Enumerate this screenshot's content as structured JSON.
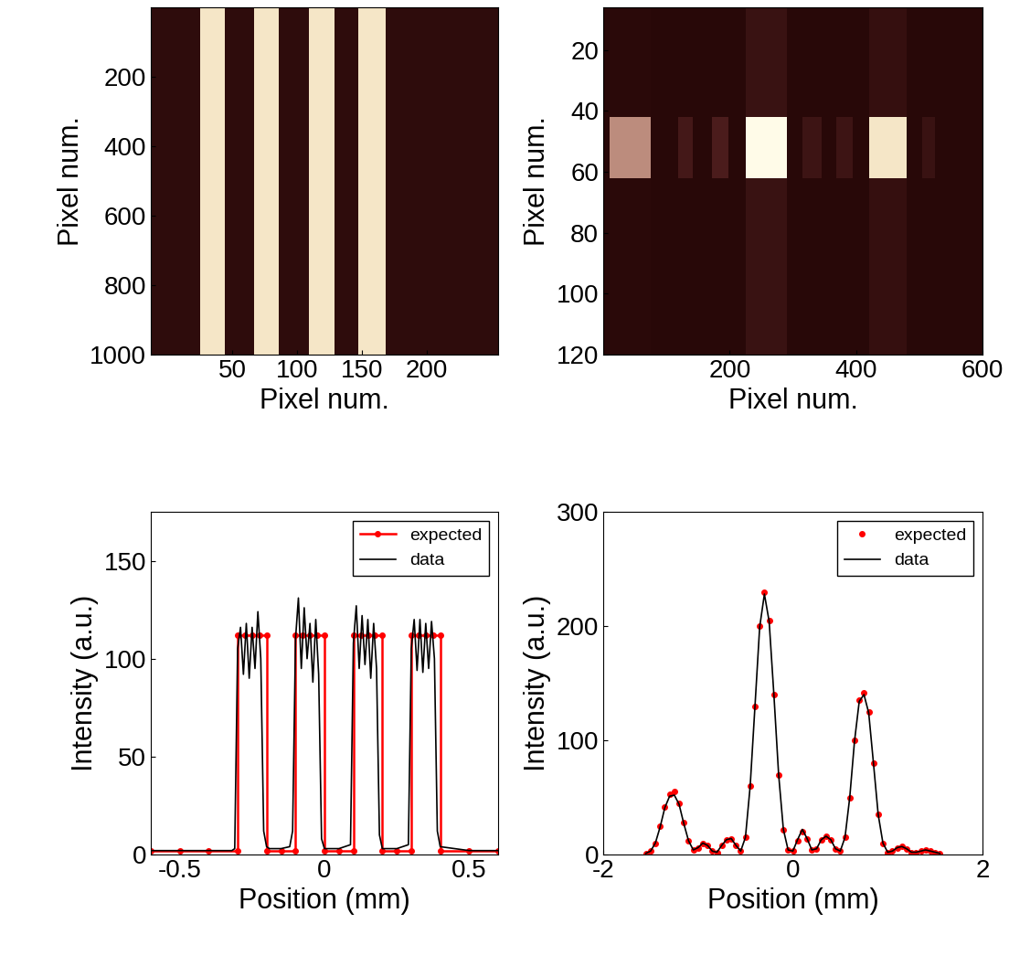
{
  "chart_data": [
    {
      "type": "heatmap",
      "x_label": "Pixel num.",
      "y_label": "Pixel num.",
      "x_edges": [
        -13,
        25,
        44.4,
        66.5,
        85.8,
        109.3,
        128.7,
        147.3,
        168,
        255
      ],
      "y_edges": [
        0,
        1000
      ],
      "cells": [
        [
          0.05,
          0.85,
          0.05,
          0.85,
          0.05,
          0.85,
          0.05,
          0.85,
          0.05
        ]
      ],
      "zlim": [
        0,
        1
      ],
      "xlim": [
        -13,
        255
      ],
      "ylim": [
        1000,
        0
      ],
      "xticks": [
        50,
        100,
        150,
        200
      ],
      "yticks": [
        200,
        400,
        600,
        800,
        1000
      ]
    },
    {
      "type": "heatmap",
      "x_label": "Pixel num.",
      "y_label": "Pixel num.",
      "x_edges": [
        0,
        10,
        75,
        118,
        142,
        172,
        198,
        225,
        290,
        315,
        345,
        368,
        395,
        420,
        480,
        505,
        525,
        600
      ],
      "y_edges": [
        6,
        42,
        62,
        120
      ],
      "cells": [
        [
          0.02,
          0.03,
          0.02,
          0.02,
          0.02,
          0.02,
          0.02,
          0.1,
          0.02,
          0.02,
          0.02,
          0.02,
          0.02,
          0.08,
          0.02,
          0.02,
          0.02
        ],
        [
          0.02,
          0.55,
          0.02,
          0.15,
          0.02,
          0.18,
          0.02,
          1.0,
          0.02,
          0.12,
          0.02,
          0.12,
          0.02,
          0.85,
          0.02,
          0.1,
          0.02
        ],
        [
          0.02,
          0.03,
          0.02,
          0.02,
          0.02,
          0.02,
          0.02,
          0.1,
          0.02,
          0.02,
          0.02,
          0.02,
          0.02,
          0.08,
          0.02,
          0.02,
          0.02
        ]
      ],
      "zlim": [
        0,
        1
      ],
      "xlim": [
        0,
        600
      ],
      "ylim": [
        120,
        6
      ],
      "xticks": [
        200,
        400,
        600
      ],
      "yticks": [
        20,
        40,
        60,
        80,
        100,
        120
      ]
    },
    {
      "type": "line",
      "x_label": "Position (mm)",
      "y_label": "Intensity (a.u.)",
      "xlim": [
        -0.6,
        0.6
      ],
      "ylim": [
        0,
        175
      ],
      "xticks": [
        -0.5,
        0,
        0.5
      ],
      "yticks": [
        0,
        50,
        100,
        150
      ],
      "legend": "upper right",
      "series": [
        {
          "name": "expected",
          "color": "#ff0000",
          "marker": "circle",
          "line_style": "solid",
          "x": [
            -0.6,
            -0.5,
            -0.4,
            -0.3,
            -0.3,
            -0.275,
            -0.25,
            -0.225,
            -0.2,
            -0.2,
            -0.15,
            -0.1,
            -0.1,
            -0.075,
            -0.05,
            -0.025,
            0,
            0,
            0.05,
            0.1,
            0.1,
            0.125,
            0.15,
            0.175,
            0.2,
            0.2,
            0.25,
            0.3,
            0.3,
            0.325,
            0.35,
            0.375,
            0.4,
            0.4,
            0.5,
            0.6
          ],
          "values": [
            2,
            2,
            2,
            2,
            112,
            112,
            112,
            112,
            112,
            2,
            2,
            2,
            112,
            112,
            112,
            112,
            112,
            2,
            2,
            2,
            112,
            112,
            112,
            112,
            112,
            2,
            2,
            2,
            112,
            112,
            112,
            112,
            112,
            2,
            2,
            2
          ]
        },
        {
          "name": "data",
          "color": "#000000",
          "line_style": "solid",
          "x": [
            -0.6,
            -0.5,
            -0.4,
            -0.32,
            -0.31,
            -0.3,
            -0.29,
            -0.28,
            -0.27,
            -0.26,
            -0.25,
            -0.24,
            -0.23,
            -0.22,
            -0.21,
            -0.2,
            -0.19,
            -0.15,
            -0.12,
            -0.11,
            -0.1,
            -0.09,
            -0.08,
            -0.07,
            -0.06,
            -0.05,
            -0.04,
            -0.03,
            -0.02,
            -0.01,
            0,
            0.05,
            0.09,
            0.1,
            0.11,
            0.12,
            0.13,
            0.14,
            0.15,
            0.16,
            0.17,
            0.18,
            0.19,
            0.2,
            0.25,
            0.29,
            0.3,
            0.31,
            0.32,
            0.33,
            0.34,
            0.35,
            0.36,
            0.37,
            0.38,
            0.39,
            0.4,
            0.5,
            0.6
          ],
          "values": [
            2,
            2,
            2,
            2,
            3,
            105,
            116,
            92,
            118,
            90,
            116,
            95,
            124,
            100,
            12,
            4,
            3,
            3,
            4,
            12,
            110,
            131,
            95,
            126,
            100,
            118,
            88,
            120,
            92,
            8,
            3,
            3,
            5,
            108,
            127,
            95,
            122,
            97,
            120,
            90,
            118,
            95,
            10,
            3,
            3,
            5,
            105,
            120,
            94,
            120,
            93,
            118,
            95,
            119,
            100,
            12,
            4,
            2,
            2
          ]
        }
      ]
    },
    {
      "type": "line",
      "x_label": "Position (mm)",
      "y_label": "Intensity (a.u.)",
      "xlim": [
        -2,
        2
      ],
      "ylim": [
        0,
        300
      ],
      "xticks": [
        -2,
        0,
        2
      ],
      "yticks": [
        0,
        100,
        200,
        300
      ],
      "legend": "upper right",
      "series": [
        {
          "name": "expected",
          "type": "scatter",
          "color": "#ff0000",
          "marker": "circle",
          "x": [
            -1.55,
            -1.5,
            -1.45,
            -1.4,
            -1.35,
            -1.3,
            -1.25,
            -1.2,
            -1.15,
            -1.1,
            -1.05,
            -1.0,
            -0.95,
            -0.9,
            -0.85,
            -0.8,
            -0.75,
            -0.7,
            -0.65,
            -0.6,
            -0.55,
            -0.5,
            -0.45,
            -0.4,
            -0.35,
            -0.3,
            -0.25,
            -0.2,
            -0.15,
            -0.1,
            -0.05,
            0.0,
            0.05,
            0.1,
            0.15,
            0.2,
            0.25,
            0.3,
            0.35,
            0.4,
            0.45,
            0.5,
            0.55,
            0.6,
            0.65,
            0.7,
            0.75,
            0.8,
            0.85,
            0.9,
            0.95,
            1.0,
            1.05,
            1.1,
            1.15,
            1.2,
            1.25,
            1.3,
            1.35,
            1.4,
            1.45,
            1.5,
            1.55
          ],
          "values": [
            1,
            3,
            10,
            25,
            42,
            53,
            55,
            45,
            28,
            12,
            4,
            6,
            10,
            8,
            3,
            2,
            8,
            13,
            14,
            8,
            3,
            15,
            60,
            130,
            200,
            230,
            205,
            140,
            70,
            22,
            4,
            3,
            12,
            20,
            14,
            4,
            5,
            13,
            16,
            13,
            5,
            3,
            15,
            50,
            100,
            135,
            142,
            125,
            80,
            35,
            10,
            2,
            3,
            6,
            7,
            5,
            2,
            2,
            3,
            4,
            3,
            2,
            1
          ]
        },
        {
          "name": "data",
          "color": "#000000",
          "line_style": "solid",
          "x": [
            -1.55,
            -1.5,
            -1.45,
            -1.4,
            -1.35,
            -1.3,
            -1.25,
            -1.2,
            -1.15,
            -1.1,
            -1.05,
            -1.0,
            -0.95,
            -0.9,
            -0.85,
            -0.8,
            -0.75,
            -0.7,
            -0.65,
            -0.6,
            -0.55,
            -0.5,
            -0.45,
            -0.4,
            -0.35,
            -0.3,
            -0.25,
            -0.2,
            -0.15,
            -0.1,
            -0.05,
            0.0,
            0.05,
            0.1,
            0.15,
            0.2,
            0.25,
            0.3,
            0.35,
            0.4,
            0.45,
            0.5,
            0.55,
            0.6,
            0.65,
            0.7,
            0.75,
            0.8,
            0.85,
            0.9,
            0.95,
            1.0,
            1.05,
            1.1,
            1.15,
            1.2,
            1.25,
            1.3,
            1.35,
            1.4,
            1.45,
            1.5,
            1.55
          ],
          "values": [
            1,
            3,
            10,
            24,
            41,
            51,
            52,
            44,
            27,
            12,
            4,
            6,
            10,
            8,
            3,
            2,
            8,
            13,
            14,
            8,
            3,
            15,
            60,
            129,
            199,
            228,
            204,
            140,
            70,
            22,
            4,
            3,
            13,
            22,
            14,
            4,
            5,
            13,
            16,
            13,
            5,
            3,
            15,
            50,
            99,
            134,
            140,
            124,
            80,
            35,
            10,
            2,
            3,
            6,
            7,
            5,
            2,
            2,
            3,
            4,
            3,
            2,
            1
          ]
        }
      ]
    }
  ]
}
